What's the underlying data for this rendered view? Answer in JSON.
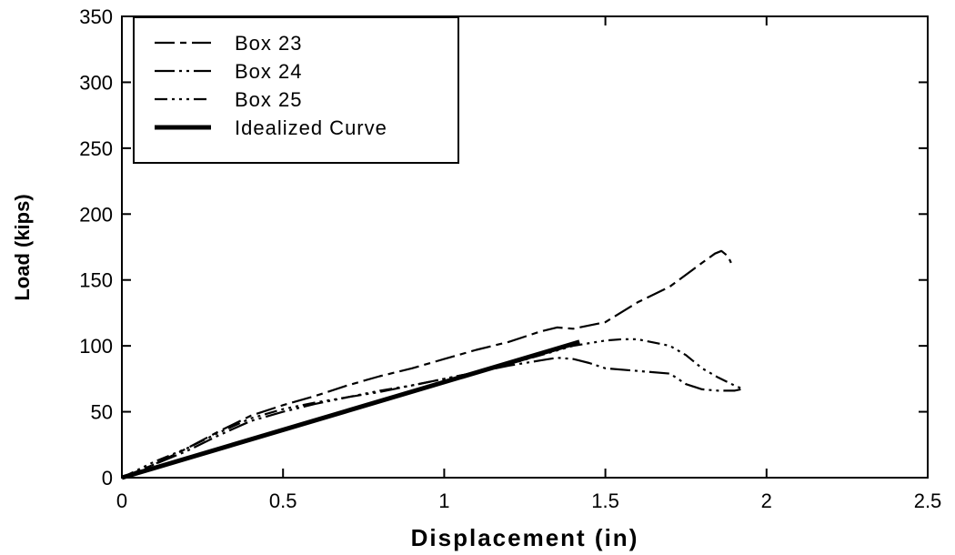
{
  "chart_data": {
    "type": "line",
    "title": "",
    "xlabel": "Displacement (in)",
    "ylabel": "Load (kips)",
    "xlim": [
      0,
      2.5
    ],
    "ylim": [
      0,
      350
    ],
    "x_ticks": [
      0,
      0.5,
      1,
      1.5,
      2,
      2.5
    ],
    "y_ticks": [
      0,
      50,
      100,
      150,
      200,
      250,
      300,
      350
    ],
    "x_tick_labels": [
      "0",
      "0.5",
      "1",
      "1.5",
      "2",
      "2.5"
    ],
    "y_tick_labels": [
      "0",
      "50",
      "100",
      "150",
      "200",
      "250",
      "300",
      "350"
    ],
    "grid": false,
    "legend_position": "top-left",
    "series": [
      {
        "name": "Box 23",
        "style": "long-dash-short-dash",
        "color": "#000000",
        "x": [
          0,
          0.05,
          0.1,
          0.2,
          0.3,
          0.4,
          0.5,
          0.6,
          0.7,
          0.8,
          0.9,
          1.0,
          1.1,
          1.2,
          1.3,
          1.35,
          1.4,
          1.5,
          1.6,
          1.7,
          1.8,
          1.84,
          1.86,
          1.88,
          1.89
        ],
        "y": [
          0,
          5,
          10,
          22,
          35,
          47,
          55,
          62,
          70,
          77,
          83,
          90,
          97,
          103,
          111,
          114,
          113,
          118,
          133,
          145,
          163,
          170,
          172,
          168,
          163
        ]
      },
      {
        "name": "Box 24",
        "style": "long-dash-dot-dot",
        "color": "#000000",
        "x": [
          0,
          0.05,
          0.1,
          0.2,
          0.3,
          0.4,
          0.5,
          0.6,
          0.7,
          0.8,
          0.9,
          1.0,
          1.1,
          1.2,
          1.3,
          1.35,
          1.4,
          1.45,
          1.5,
          1.6,
          1.7,
          1.75,
          1.8,
          1.85,
          1.9,
          1.92
        ],
        "y": [
          0,
          5,
          10,
          20,
          32,
          43,
          50,
          56,
          61,
          65,
          70,
          75,
          80,
          85,
          89,
          91,
          90,
          87,
          83,
          81,
          79,
          71,
          67,
          66,
          66,
          67
        ]
      },
      {
        "name": "Box 25",
        "style": "dash-dot-dot-dot",
        "color": "#000000",
        "x": [
          0,
          0.05,
          0.1,
          0.2,
          0.3,
          0.4,
          0.5,
          0.6,
          0.7,
          0.8,
          0.9,
          1.0,
          1.1,
          1.2,
          1.3,
          1.4,
          1.5,
          1.55,
          1.6,
          1.7,
          1.75,
          1.8,
          1.85,
          1.9,
          1.92
        ],
        "y": [
          0,
          6,
          12,
          22,
          34,
          45,
          52,
          57,
          61,
          66,
          70,
          75,
          80,
          86,
          93,
          100,
          104,
          105,
          105,
          100,
          93,
          83,
          76,
          70,
          68
        ]
      },
      {
        "name": "Idealized Curve",
        "style": "thick-solid",
        "color": "#000000",
        "x": [
          0,
          1.42
        ],
        "y": [
          0,
          103
        ]
      }
    ]
  }
}
